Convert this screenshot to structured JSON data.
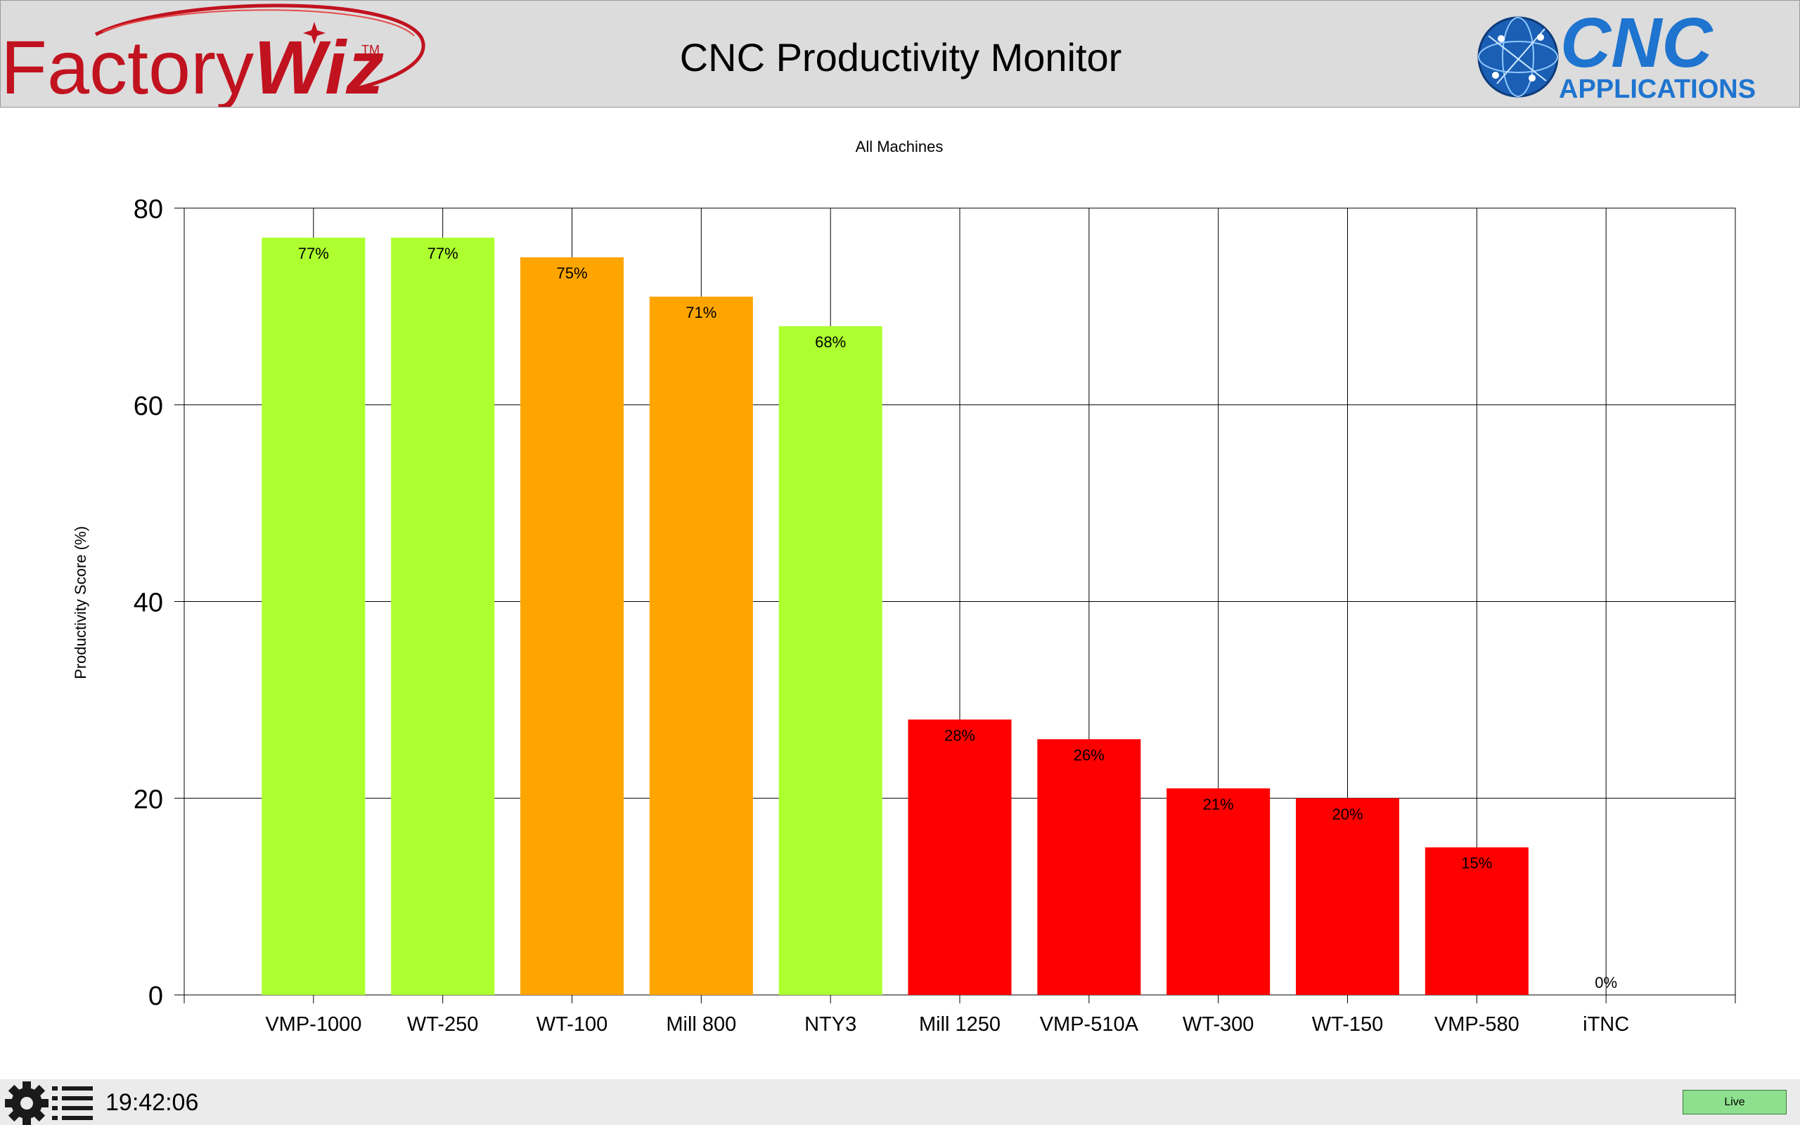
{
  "header": {
    "brand_left": "FactoryWiz",
    "brand_left_mark": "TM",
    "title": "CNC Productivity Monitor",
    "brand_right_line1": "CNC",
    "brand_right_line2": "APPLICATIONS"
  },
  "footer": {
    "time": "19:42:06",
    "live_label": "Live",
    "settings_icon": "gear-icon",
    "menu_icon": "list-icon"
  },
  "colors": {
    "good": "#adff2f",
    "warn": "#ffa500",
    "bad": "#ff0000"
  },
  "chart_data": {
    "type": "bar",
    "title": "All Machines",
    "xlabel": "",
    "ylabel": "Productivity Score (%)",
    "ylim": [
      0,
      80
    ],
    "yticks": [
      0,
      20,
      40,
      60,
      80
    ],
    "grid": true,
    "categories": [
      "VMP-1000",
      "WT-250",
      "WT-100",
      "Mill 800",
      "NTY3",
      "Mill 1250",
      "VMP-510A",
      "WT-300",
      "WT-150",
      "VMP-580",
      "iTNC"
    ],
    "values": [
      77,
      77,
      75,
      71,
      68,
      28,
      26,
      21,
      20,
      15,
      0
    ],
    "value_labels": [
      "77%",
      "77%",
      "75%",
      "71%",
      "68%",
      "28%",
      "26%",
      "21%",
      "20%",
      "15%",
      "0%"
    ],
    "bar_colors": [
      "#adff2f",
      "#adff2f",
      "#ffa500",
      "#ffa500",
      "#adff2f",
      "#ff0000",
      "#ff0000",
      "#ff0000",
      "#ff0000",
      "#ff0000",
      "#ff0000"
    ]
  }
}
